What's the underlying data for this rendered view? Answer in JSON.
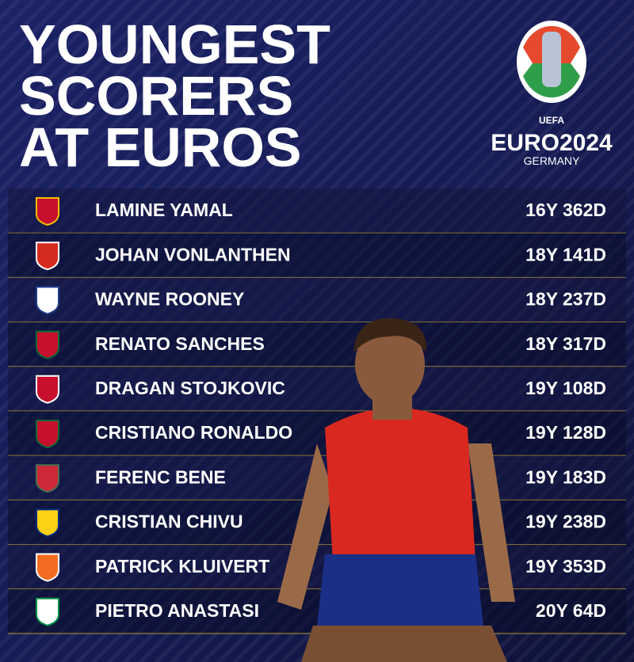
{
  "header": {
    "title_lines": [
      "YOUNGEST",
      "SCORERS",
      "AT EUROS"
    ]
  },
  "logo": {
    "org": "UEFA",
    "event": "EURO2024",
    "host": "GERMANY"
  },
  "table": {
    "rows": [
      [
        "LAMINE YAMAL",
        "16Y 362D"
      ],
      [
        "JOHAN VONLANTHEN",
        "18Y 141D"
      ],
      [
        "WAYNE ROONEY",
        "18Y 237D"
      ],
      [
        "RENATO SANCHES",
        "18Y 317D"
      ],
      [
        "DRAGAN STOJKOVIC",
        "19Y 108D"
      ],
      [
        "CRISTIANO RONALDO",
        "19Y 128D"
      ],
      [
        "FERENC BENE",
        "19Y 183D"
      ],
      [
        "CRISTIAN CHIVU",
        "19Y 238D"
      ],
      [
        "PATRICK KLUIVERT",
        "19Y 353D"
      ],
      [
        "PIETRO ANASTASI",
        "20Y 64D"
      ]
    ]
  }
}
